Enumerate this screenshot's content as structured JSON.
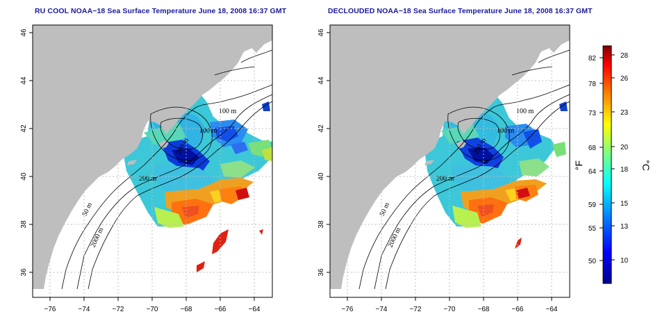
{
  "panels": [
    {
      "id": "left",
      "title": "RU COOL NOAA−18 Sea Surface Temperature June 18, 2008 16:37 GMT",
      "contour_labels": [
        "100 m",
        "100 m",
        "200 m",
        "200 m",
        "50 m",
        "2000 m"
      ]
    },
    {
      "id": "right",
      "title": "DECLOUDED NOAA−18 Sea Surface Temperature June 18, 2008 16:37 GMT",
      "contour_labels": [
        "100 m",
        "100 m",
        "200 m",
        "200 m",
        "50 m",
        "2000 m"
      ]
    }
  ],
  "axes": {
    "x_ticks": [
      "−76",
      "−74",
      "−72",
      "−70",
      "−68",
      "−66",
      "−64"
    ],
    "y_ticks": [
      "36",
      "38",
      "40",
      "42",
      "44",
      "46"
    ],
    "xlim": [
      -77.2,
      -63.1
    ],
    "ylim": [
      35.0,
      46.0
    ],
    "grid": "dotted"
  },
  "colorbar": {
    "fahrenheit_ticks": [
      "82",
      "78",
      "73",
      "68",
      "64",
      "59",
      "55",
      "50"
    ],
    "celsius_ticks": [
      "28",
      "26",
      "23",
      "20",
      "18",
      "15",
      "13",
      "10"
    ],
    "fahrenheit_unit": "°F",
    "celsius_unit": "°C",
    "range_c": [
      7.5,
      29
    ],
    "colors": [
      "#00008f",
      "#0000ff",
      "#0080ff",
      "#00ffff",
      "#80ff80",
      "#ffff00",
      "#ff8000",
      "#ff0000",
      "#800000"
    ]
  },
  "colors": {
    "land": "#bebebe",
    "title": "#1a1a9a"
  }
}
